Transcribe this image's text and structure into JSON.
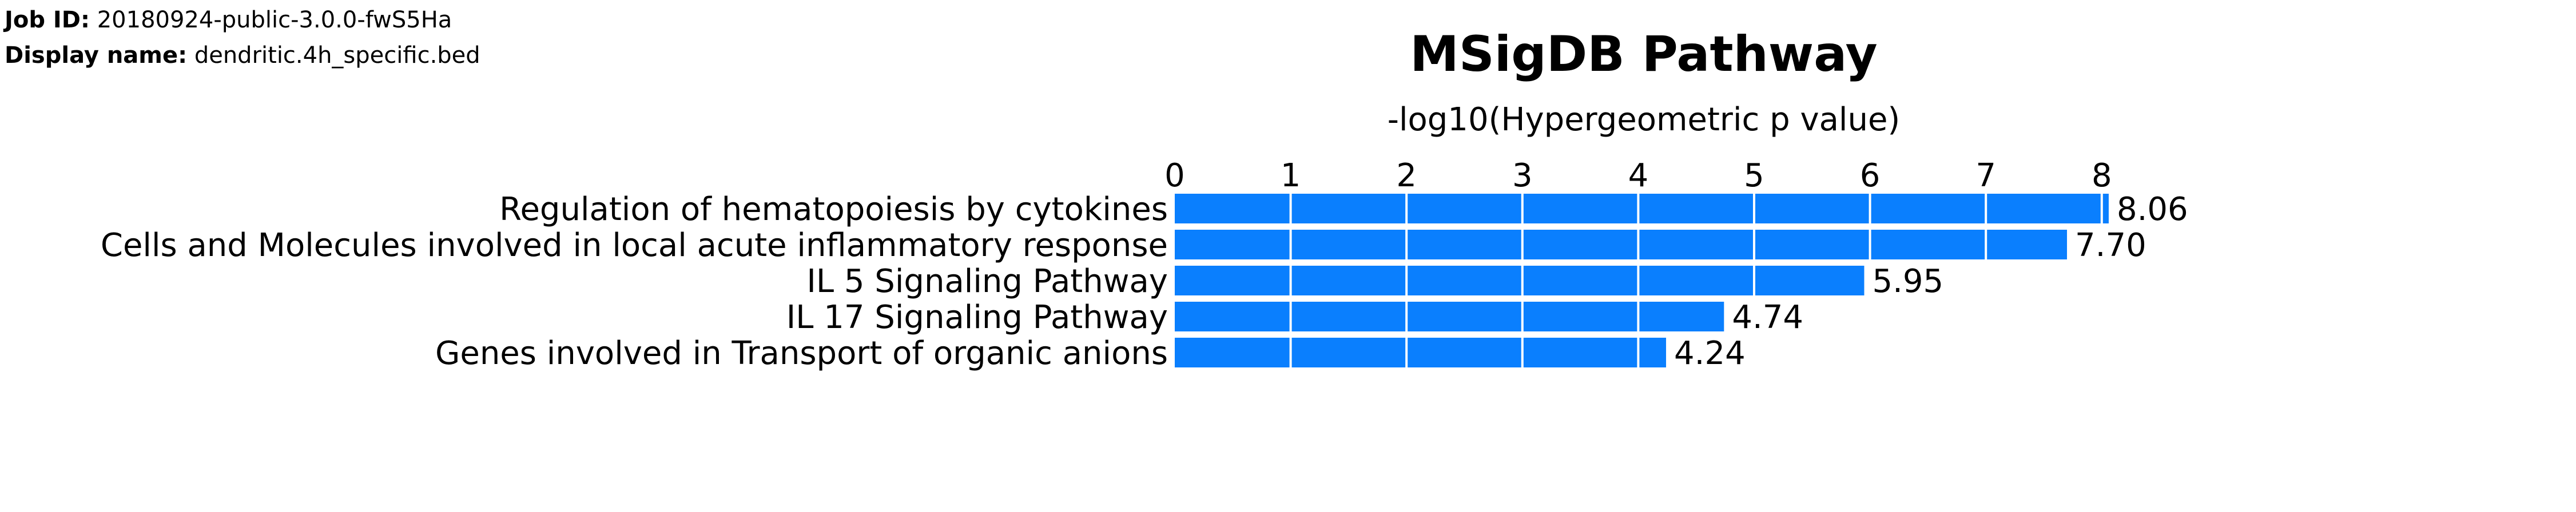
{
  "job": {
    "id_label": "Job ID:",
    "id_value": "20180924-public-3.0.0-fwS5Ha",
    "name_label": "Display name:",
    "name_value": "dendritic.4h_specific.bed"
  },
  "chart_data": {
    "type": "bar",
    "orientation": "horizontal",
    "title": "MSigDB Pathway",
    "xlabel": "-log10(Hypergeometric p value)",
    "ylabel": "",
    "xlim": [
      0,
      8.3
    ],
    "xticks": [
      0,
      1,
      2,
      3,
      4,
      5,
      6,
      7,
      8
    ],
    "x_axis_position": "top",
    "grid": true,
    "categories": [
      "Regulation of hematopoiesis by cytokines",
      "Cells and Molecules involved in local acute inflammatory response",
      "IL 5 Signaling Pathway",
      "IL 17 Signaling Pathway",
      "Genes involved in Transport of organic anions"
    ],
    "values": [
      8.06,
      7.7,
      5.95,
      4.74,
      4.24
    ],
    "value_labels": [
      "8.06",
      "7.70",
      "5.95",
      "4.74",
      "4.24"
    ],
    "bar_color": "#0a7ffe",
    "grid_color": "#ffffff"
  }
}
